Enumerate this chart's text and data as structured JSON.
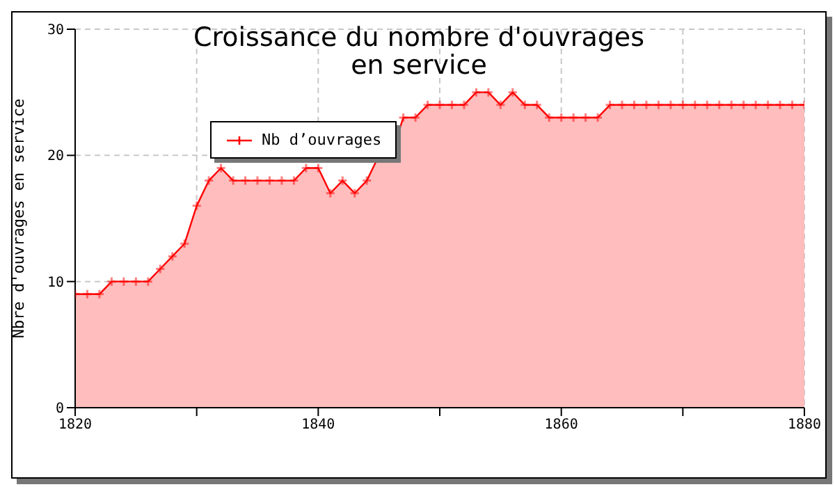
{
  "chart_data": {
    "type": "area",
    "title": "Croissance du nombre d'ouvrages\nen service",
    "ylabel": "Nbre d'ouvrages en service",
    "x": [
      1820,
      1821,
      1822,
      1823,
      1824,
      1825,
      1826,
      1827,
      1828,
      1829,
      1830,
      1831,
      1832,
      1833,
      1834,
      1835,
      1836,
      1837,
      1838,
      1839,
      1840,
      1841,
      1842,
      1843,
      1844,
      1845,
      1846,
      1847,
      1848,
      1849,
      1850,
      1851,
      1852,
      1853,
      1854,
      1855,
      1856,
      1857,
      1858,
      1859,
      1860,
      1861,
      1862,
      1863,
      1864,
      1865,
      1866,
      1867,
      1868,
      1869,
      1870,
      1871,
      1872,
      1873,
      1874,
      1875,
      1876,
      1877,
      1878,
      1879,
      1880
    ],
    "series": [
      {
        "name": "Nb d’ouvrages",
        "color": "#ff0000",
        "values": [
          9,
          9,
          9,
          10,
          10,
          10,
          10,
          11,
          12,
          13,
          16,
          18,
          19,
          18,
          18,
          18,
          18,
          18,
          18,
          19,
          19,
          17,
          18,
          17,
          18,
          20,
          20,
          23,
          23,
          24,
          24,
          24,
          24,
          25,
          25,
          24,
          25,
          24,
          24,
          23,
          23,
          23,
          23,
          23,
          24,
          24,
          24,
          24,
          24,
          24,
          24,
          24,
          24,
          24,
          24,
          24,
          24,
          24,
          24,
          24,
          24
        ]
      }
    ],
    "xlim": [
      1820,
      1880
    ],
    "xticks": [
      1820,
      {
        "value": 1830,
        "label": null
      },
      1840,
      {
        "value": 1850,
        "label": null
      },
      1860,
      {
        "value": 1870,
        "label": null
      },
      1880
    ],
    "ylim": [
      0,
      30
    ],
    "yticks": [
      0,
      10,
      20,
      30
    ],
    "grid": true,
    "legend": "top left",
    "marker": "cross"
  }
}
